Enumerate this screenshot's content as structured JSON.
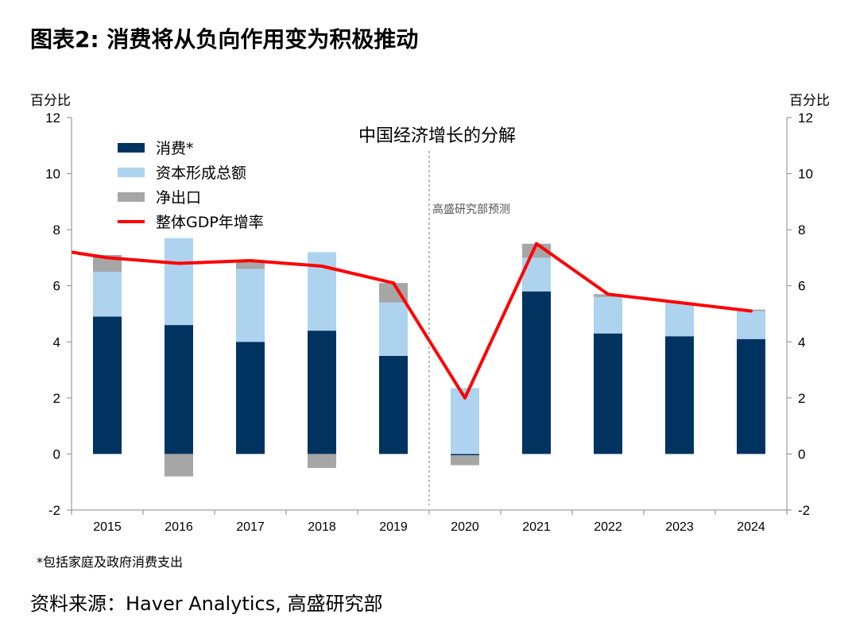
{
  "title": "图表2: 消费将从负向作用变为积极推动",
  "left_unit": "百分比",
  "right_unit": "百分比",
  "footnote": "*包括家庭及政府消费支出",
  "source": "资料来源：Haver Analytics, 高盛研究部",
  "chart_data": {
    "type": "bar",
    "title": "中国经济增长的分解",
    "annotation": "高盛研究部预测",
    "categories": [
      "2015",
      "2016",
      "2017",
      "2018",
      "2019",
      "2020",
      "2021",
      "2022",
      "2023",
      "2024"
    ],
    "stacked": true,
    "ylim": [
      -2,
      12
    ],
    "yticks": [
      -2,
      0,
      2,
      4,
      6,
      8,
      10,
      12
    ],
    "series": [
      {
        "name": "消费*",
        "type": "bar",
        "color": "#003360",
        "values": [
          4.9,
          4.6,
          4.0,
          4.4,
          3.5,
          -0.05,
          5.8,
          4.3,
          4.2,
          4.1
        ]
      },
      {
        "name": "资本形成总额",
        "type": "bar",
        "color": "#aed3ee",
        "values": [
          1.6,
          3.1,
          2.6,
          2.8,
          1.9,
          2.35,
          1.2,
          1.3,
          1.2,
          1.0
        ]
      },
      {
        "name": "净出口",
        "type": "bar",
        "color": "#a6a6a6",
        "values": [
          0.6,
          -0.8,
          0.3,
          -0.5,
          0.7,
          -0.35,
          0.5,
          0.1,
          0.0,
          0.05
        ]
      },
      {
        "name": "整体GDP年增率",
        "type": "line",
        "color": "#ff0000",
        "values": [
          7.0,
          6.8,
          6.9,
          6.7,
          6.1,
          2.0,
          7.5,
          5.7,
          5.4,
          5.1
        ]
      }
    ],
    "legend_position": "top-left"
  }
}
